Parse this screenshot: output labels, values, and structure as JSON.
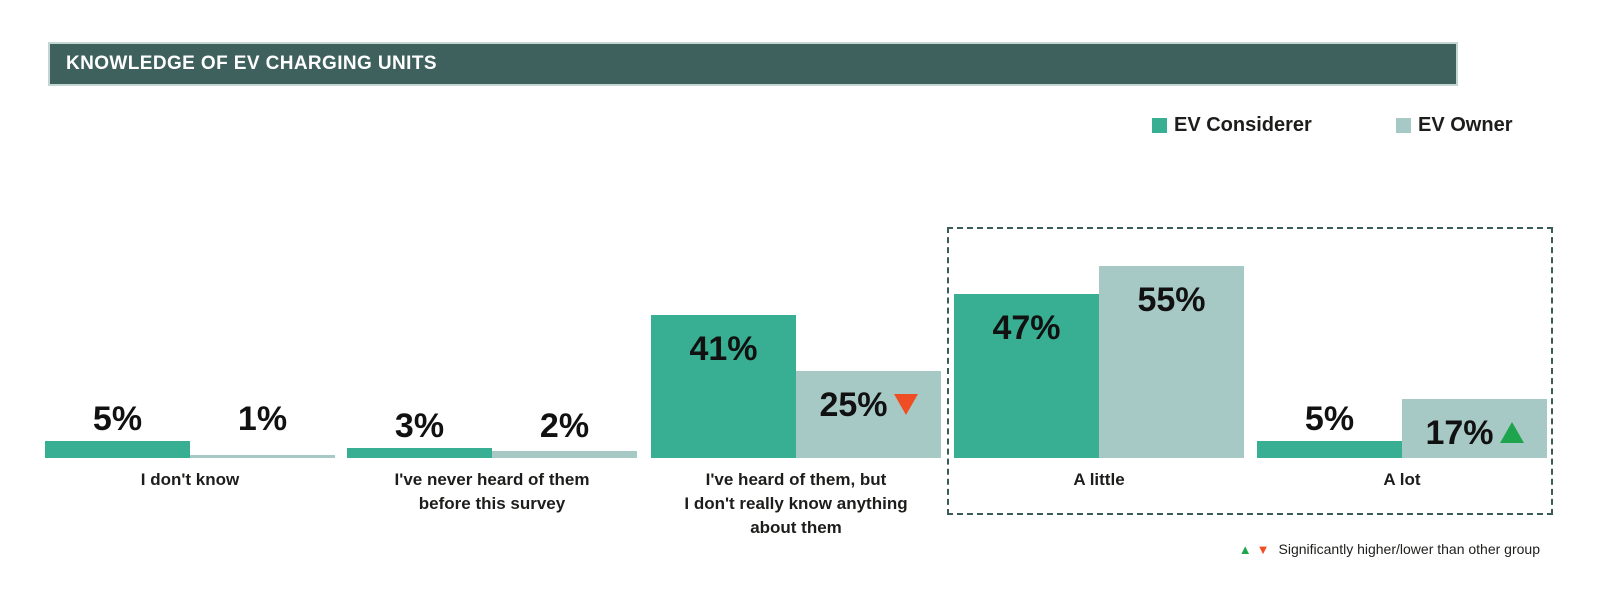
{
  "header": {
    "title": "KNOWLEDGE OF EV CHARGING UNITS"
  },
  "legend": {
    "items": [
      {
        "label": "EV Considerer",
        "color": "#38af92"
      },
      {
        "label": "EV Owner",
        "color": "#a7c9c6"
      }
    ]
  },
  "footnote": {
    "up_symbol": "▲",
    "down_symbol": "▼",
    "text": "Significantly higher/lower than other group"
  },
  "colors": {
    "considerer": "#38af92",
    "owner": "#a7c9c6",
    "header_bg": "#3f615d",
    "header_border": "#c3d6d3",
    "up_triangle": "#1ea44c",
    "down_triangle": "#ef4e24",
    "dashed_box": "#3b5c56",
    "value_text": "#111111"
  },
  "chart_data": {
    "type": "bar",
    "title": "KNOWLEDGE OF EV CHARGING UNITS",
    "unit": "%",
    "categories": [
      "I don't know",
      "I've never heard of them before this survey",
      "I've heard of them, but I don't really know anything about them",
      "A little",
      "A lot"
    ],
    "categories_display": [
      [
        "I don't know"
      ],
      [
        "I've never heard of them",
        "before this survey"
      ],
      [
        "I've heard of them, but",
        "I don't really know anything",
        "about them"
      ],
      [
        "A little"
      ],
      [
        "A lot"
      ]
    ],
    "series": [
      {
        "name": "EV Considerer",
        "color": "#38af92",
        "values": [
          5,
          3,
          41,
          47,
          5
        ]
      },
      {
        "name": "EV Owner",
        "color": "#a7c9c6",
        "values": [
          1,
          2,
          25,
          55,
          17
        ]
      }
    ],
    "value_labels": [
      [
        "5%",
        "3%",
        "41%",
        "47%",
        "5%"
      ],
      [
        "1%",
        "2%",
        "25%",
        "55%",
        "17%"
      ]
    ],
    "annotations": [
      {
        "series": "EV Owner",
        "category": "I've heard of them, but I don't really know anything about them",
        "marker": "down",
        "meaning": "significantly lower than other group"
      },
      {
        "series": "EV Owner",
        "category": "A lot",
        "marker": "up",
        "meaning": "significantly higher than other group"
      }
    ],
    "highlight_box": {
      "categories": [
        "A little",
        "A lot"
      ],
      "style": "dashed"
    },
    "ylim": [
      0,
      60
    ],
    "grid": false,
    "axes_shown": false,
    "legend_position": "top-right"
  }
}
